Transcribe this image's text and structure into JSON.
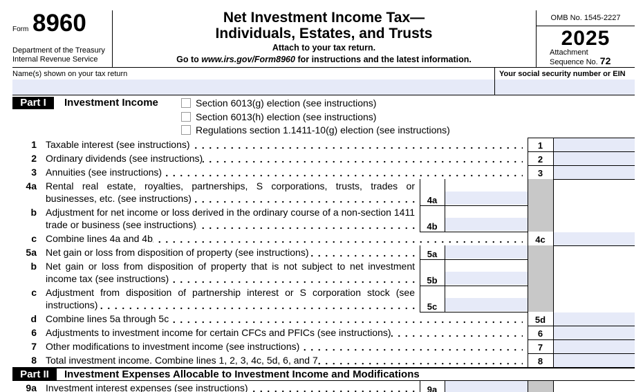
{
  "header": {
    "form_label": "Form",
    "form_number": "8960",
    "department": "Department of the Treasury",
    "service": "Internal Revenue Service",
    "title_line1": "Net Investment Income Tax—",
    "title_line2": "Individuals, Estates, and Trusts",
    "attach": "Attach to your tax return.",
    "goto_prefix": "Go to",
    "goto_url": "www.irs.gov/Form8960",
    "goto_suffix": "for instructions and the latest information.",
    "omb": "OMB No. 1545-2227",
    "year": "2025",
    "attachment": "Attachment",
    "sequence_label": "Sequence No.",
    "sequence_number": "72"
  },
  "name_row": {
    "name_label": "Name(s) shown on your tax return",
    "ssn_label": "Your social security number or EIN"
  },
  "part1": {
    "label": "Part I",
    "title": "Investment Income",
    "elections": [
      "Section 6013(g) election (see instructions)",
      "Section 6013(h) election (see instructions)",
      "Regulations section 1.1411-10(g) election (see instructions)"
    ]
  },
  "lines": [
    {
      "num": "1",
      "text": "Taxable interest (see instructions)",
      "box": "1"
    },
    {
      "num": "2",
      "text": "Ordinary dividends (see instructions)",
      "box": "2"
    },
    {
      "num": "3",
      "text": "Annuities (see instructions)",
      "box": "3"
    },
    {
      "num": "4a",
      "text": "Rental real estate, royalties, partnerships, S corporations, trusts, trades or businesses, etc. (see instructions)",
      "inner_box": "4a"
    },
    {
      "num": "b",
      "text": "Adjustment for net income or loss derived in the ordinary course of a non-section 1411 trade or business (see instructions)",
      "inner_box": "4b"
    },
    {
      "num": "c",
      "text": "Combine lines 4a and 4b",
      "box": "4c"
    },
    {
      "num": "5a",
      "text": "Net gain or loss from disposition of property (see instructions)",
      "inner_box": "5a"
    },
    {
      "num": "b",
      "text": "Net gain or loss from disposition of property that is not subject to net investment income tax (see instructions)",
      "inner_box": "5b"
    },
    {
      "num": "c",
      "text": "Adjustment from disposition of partnership interest or S corporation stock (see instructions)",
      "inner_box": "5c"
    },
    {
      "num": "d",
      "text": "Combine lines 5a through 5c",
      "box": "5d"
    },
    {
      "num": "6",
      "text": "Adjustments to investment income for certain CFCs and PFICs (see instructions)",
      "box": "6"
    },
    {
      "num": "7",
      "text": "Other modifications to investment income (see instructions)",
      "box": "7"
    },
    {
      "num": "8",
      "text": "Total investment income. Combine lines 1, 2, 3, 4c, 5d, 6, and 7",
      "box": "8"
    }
  ],
  "part2": {
    "label": "Part II",
    "title": "Investment Expenses Allocable to Investment Income and Modifications"
  },
  "lines2": [
    {
      "num": "9a",
      "text": "Investment interest expenses (see instructions)",
      "inner_box": "9a"
    }
  ]
}
